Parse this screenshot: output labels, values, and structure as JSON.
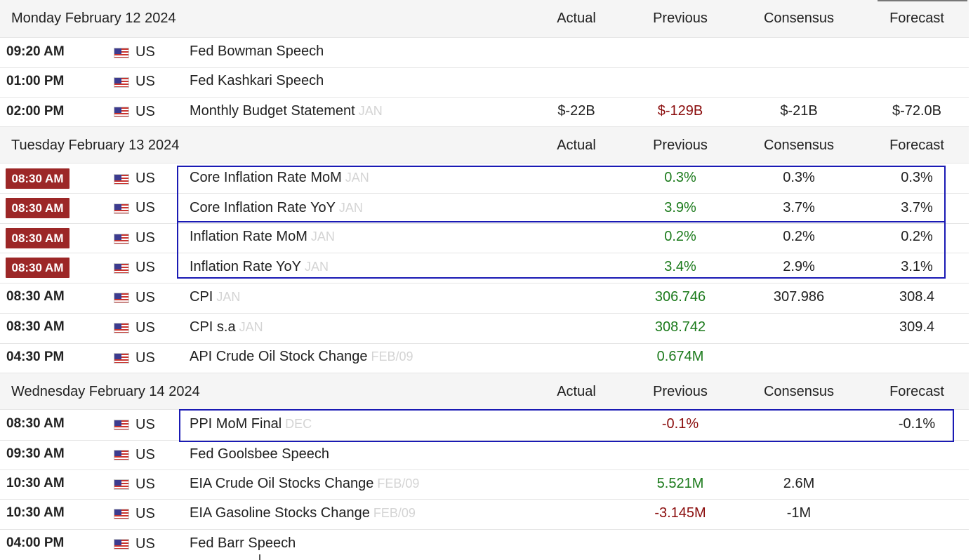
{
  "columns": {
    "actual": "Actual",
    "previous": "Previous",
    "consensus": "Consensus",
    "forecast": "Forecast"
  },
  "days": [
    {
      "date": "Monday February 12 2024"
    },
    {
      "date": "Tuesday February 13 2024"
    },
    {
      "date": "Wednesday February 14 2024"
    }
  ],
  "events": [
    {
      "time": "09:20 AM",
      "country": "US",
      "name": "Fed Bowman Speech",
      "ref": "",
      "actual": "",
      "previous": "",
      "consensus": "",
      "forecast": ""
    },
    {
      "time": "01:00 PM",
      "country": "US",
      "name": "Fed Kashkari Speech",
      "ref": "",
      "actual": "",
      "previous": "",
      "consensus": "",
      "forecast": ""
    },
    {
      "time": "02:00 PM",
      "country": "US",
      "name": "Monthly Budget Statement",
      "ref": "JAN",
      "actual": "$-22B",
      "previous": "$-129B",
      "consensus": "$-21B",
      "forecast": "$-72.0B"
    },
    {
      "time": "08:30 AM",
      "country": "US",
      "name": "Core Inflation Rate MoM",
      "ref": "JAN",
      "actual": "",
      "previous": "0.3%",
      "consensus": "0.3%",
      "forecast": "0.3%"
    },
    {
      "time": "08:30 AM",
      "country": "US",
      "name": "Core Inflation Rate YoY",
      "ref": "JAN",
      "actual": "",
      "previous": "3.9%",
      "consensus": "3.7%",
      "forecast": "3.7%"
    },
    {
      "time": "08:30 AM",
      "country": "US",
      "name": "Inflation Rate MoM",
      "ref": "JAN",
      "actual": "",
      "previous": "0.2%",
      "consensus": "0.2%",
      "forecast": "0.2%"
    },
    {
      "time": "08:30 AM",
      "country": "US",
      "name": "Inflation Rate YoY",
      "ref": "JAN",
      "actual": "",
      "previous": "3.4%",
      "consensus": "2.9%",
      "forecast": "3.1%"
    },
    {
      "time": "08:30 AM",
      "country": "US",
      "name": "CPI",
      "ref": "JAN",
      "actual": "",
      "previous": "306.746",
      "consensus": "307.986",
      "forecast": "308.4"
    },
    {
      "time": "08:30 AM",
      "country": "US",
      "name": "CPI s.a",
      "ref": "JAN",
      "actual": "",
      "previous": "308.742",
      "consensus": "",
      "forecast": "309.4"
    },
    {
      "time": "04:30 PM",
      "country": "US",
      "name": "API Crude Oil Stock Change",
      "ref": "FEB/09",
      "actual": "",
      "previous": "0.674M",
      "consensus": "",
      "forecast": ""
    },
    {
      "time": "08:30 AM",
      "country": "US",
      "name": "PPI MoM Final",
      "ref": "DEC",
      "actual": "",
      "previous": "-0.1%",
      "consensus": "",
      "forecast": "-0.1%"
    },
    {
      "time": "09:30 AM",
      "country": "US",
      "name": "Fed Goolsbee Speech",
      "ref": "",
      "actual": "",
      "previous": "",
      "consensus": "",
      "forecast": ""
    },
    {
      "time": "10:30 AM",
      "country": "US",
      "name": "EIA Crude Oil Stocks Change",
      "ref": "FEB/09",
      "actual": "",
      "previous": "5.521M",
      "consensus": "2.6M",
      "forecast": ""
    },
    {
      "time": "10:30 AM",
      "country": "US",
      "name": "EIA Gasoline Stocks Change",
      "ref": "FEB/09",
      "actual": "",
      "previous": "-3.145M",
      "consensus": "-1M",
      "forecast": ""
    },
    {
      "time": "04:00 PM",
      "country": "US",
      "name": "Fed Barr Speech",
      "ref": "",
      "actual": "",
      "previous": "",
      "consensus": "",
      "forecast": ""
    }
  ],
  "colors": {
    "positive": "#1b7a1b",
    "negative": "#8a0c0c",
    "highlight_time": "#9c2727",
    "annotation_box": "#1a1ab4"
  }
}
